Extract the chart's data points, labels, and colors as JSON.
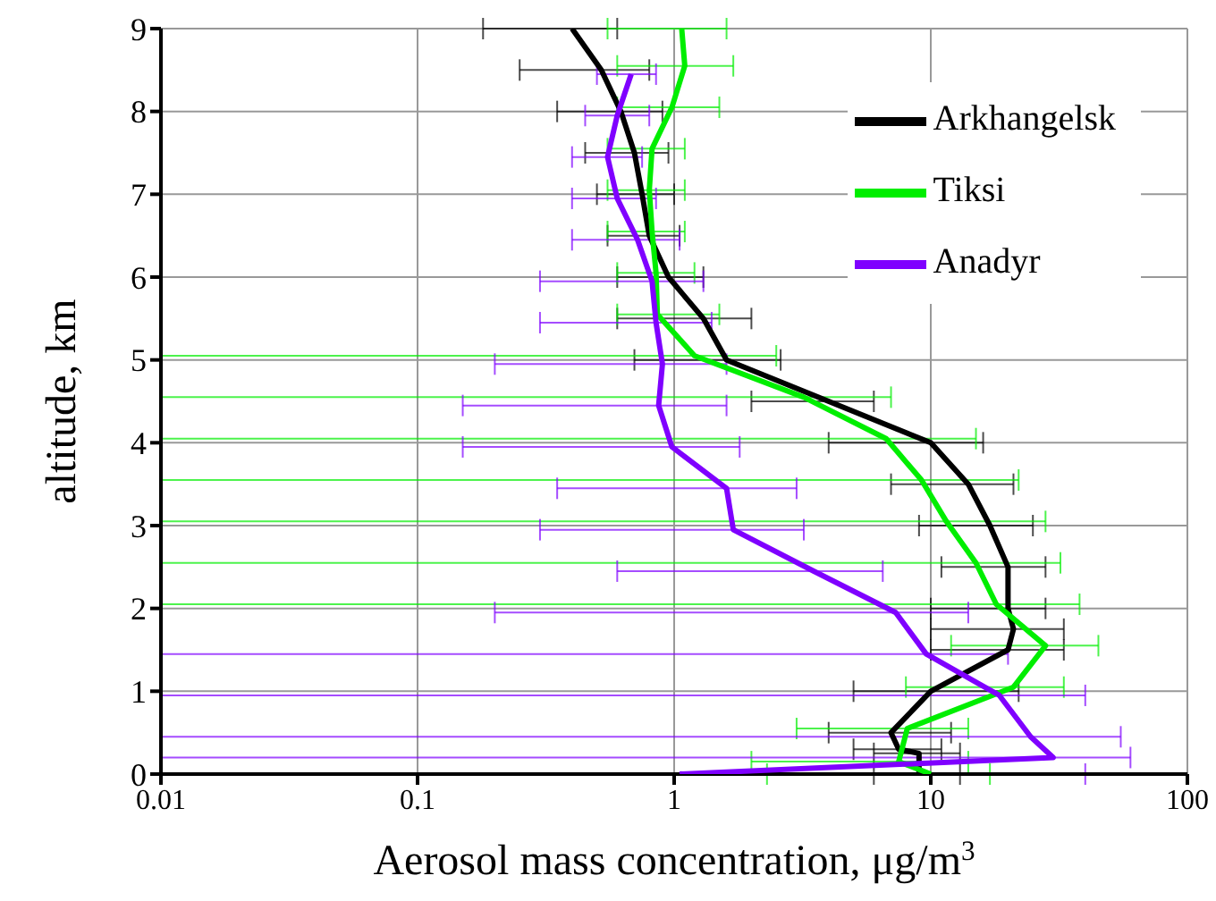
{
  "chart_data": {
    "type": "line",
    "xlabel": "Aerosol mass concentration, μg/m$^{3}$",
    "ylabel": "altitude, km",
    "log": "x",
    "xlim": [
      0.01,
      100
    ],
    "xticks": [
      0.01,
      0.1,
      1,
      10,
      100
    ],
    "ylim": [
      0,
      9
    ],
    "yticks": [
      0,
      1,
      2,
      3,
      4,
      5,
      6,
      7,
      8,
      9
    ],
    "grid": true,
    "legend": "top right",
    "marker": "none",
    "series": [
      {
        "name": "Arkhangelsk",
        "color": "#000000",
        "x": [
          9,
          9,
          7.5,
          7,
          10,
          20,
          21,
          20,
          20,
          17,
          14,
          10,
          4,
          1.6,
          1.3,
          0.95,
          0.8,
          0.75,
          0.7,
          0.62,
          0.52,
          0.4
        ],
        "values": [
          0,
          0.25,
          0.3,
          0.5,
          1,
          1.5,
          1.75,
          2,
          2.5,
          3,
          3.5,
          4,
          4.5,
          5,
          5.5,
          6,
          6.5,
          7,
          7.5,
          8,
          8.5,
          9
        ],
        "xerrors": [
          [
            6,
            13
          ],
          [
            6,
            13
          ],
          [
            5,
            11
          ],
          [
            4,
            12
          ],
          [
            5,
            22
          ],
          [
            10,
            33
          ],
          [
            10,
            33
          ],
          [
            10,
            28
          ],
          [
            11,
            28
          ],
          [
            9,
            25
          ],
          [
            7,
            21
          ],
          [
            4,
            16
          ],
          [
            2,
            6
          ],
          [
            0.7,
            2.6
          ],
          [
            0.6,
            2
          ],
          [
            0.6,
            1.3
          ],
          [
            0.55,
            1.05
          ],
          [
            0.5,
            1
          ],
          [
            0.45,
            0.95
          ],
          [
            0.35,
            0.9
          ],
          [
            0.25,
            0.8
          ],
          [
            0.18,
            0.6
          ]
        ]
      },
      {
        "name": "Tiksi",
        "color": "#00ee00",
        "x": [
          10,
          7.5,
          8.1,
          21,
          28,
          18,
          15,
          11.5,
          9.2,
          6.7,
          3.2,
          1.2,
          0.86,
          0.85,
          0.82,
          0.8,
          0.82,
          0.98,
          1.1,
          1.07
        ],
        "values": [
          0,
          0.15,
          0.55,
          1.05,
          1.55,
          2.05,
          2.55,
          3.05,
          3.55,
          4.05,
          4.55,
          5.05,
          5.55,
          6.05,
          6.55,
          7.05,
          7.55,
          8.05,
          8.55,
          9
        ],
        "xerrors": [
          [
            2.3,
            17
          ],
          [
            2,
            14
          ],
          [
            3,
            14
          ],
          [
            8,
            33
          ],
          [
            12,
            45
          ],
          [
            0.01,
            38
          ],
          [
            0.01,
            32
          ],
          [
            0.01,
            28
          ],
          [
            0.01,
            22
          ],
          [
            0.01,
            15
          ],
          [
            0.01,
            7
          ],
          [
            0.01,
            2.5
          ],
          [
            0.6,
            1.5
          ],
          [
            0.6,
            1.2
          ],
          [
            0.55,
            1.1
          ],
          [
            0.55,
            1.1
          ],
          [
            0.55,
            1.1
          ],
          [
            0.6,
            1.5
          ],
          [
            0.6,
            1.7
          ],
          [
            0.55,
            1.6
          ]
        ]
      },
      {
        "name": "Anadyr",
        "color": "#7f00ff",
        "x": [
          1.05,
          30,
          24.5,
          18.5,
          9.6,
          7.3,
          3.5,
          1.7,
          1.6,
          0.98,
          0.87,
          0.9,
          0.85,
          0.82,
          0.72,
          0.6,
          0.55,
          0.6,
          0.68
        ],
        "values": [
          0,
          0.2,
          0.45,
          0.95,
          1.45,
          1.95,
          2.45,
          2.95,
          3.45,
          3.95,
          4.45,
          4.95,
          5.45,
          5.95,
          6.45,
          6.95,
          7.45,
          7.95,
          8.45
        ],
        "xerrors": [
          [
            0.01,
            40
          ],
          [
            0.01,
            60
          ],
          [
            0.01,
            55
          ],
          [
            0.01,
            40
          ],
          [
            0.01,
            20
          ],
          [
            0.2,
            14
          ],
          [
            0.6,
            6.5
          ],
          [
            0.3,
            3.2
          ],
          [
            0.35,
            3
          ],
          [
            0.15,
            1.8
          ],
          [
            0.15,
            1.6
          ],
          [
            0.2,
            1.6
          ],
          [
            0.3,
            1.4
          ],
          [
            0.3,
            1.3
          ],
          [
            0.4,
            1.05
          ],
          [
            0.4,
            0.85
          ],
          [
            0.4,
            0.75
          ],
          [
            0.45,
            0.8
          ],
          [
            0.5,
            0.85
          ]
        ]
      }
    ]
  }
}
